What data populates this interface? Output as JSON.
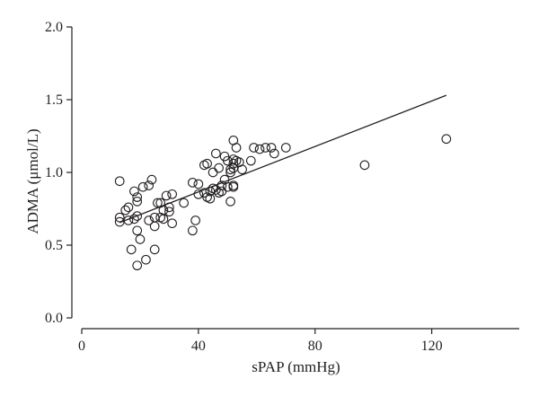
{
  "chart_data": {
    "type": "scatter",
    "title": "",
    "xlabel": "sPAP (mmHg)",
    "ylabel": "ADMA (μmol/L)",
    "xlim": [
      0,
      150
    ],
    "ylim": [
      0,
      2.0
    ],
    "x_ticks": [
      "0",
      "40",
      "80",
      "120"
    ],
    "x_tick_values": [
      0,
      40,
      80,
      120
    ],
    "y_ticks": [
      "0.0",
      "0.5",
      "1.0",
      "1.5",
      "2.0"
    ],
    "y_tick_values": [
      0.0,
      0.5,
      1.0,
      1.5,
      2.0
    ],
    "grid": false,
    "marker": "open-circle",
    "colors": {
      "ink": "#231f20"
    },
    "points": [
      {
        "x": 13,
        "y": 0.94
      },
      {
        "x": 13,
        "y": 0.69
      },
      {
        "x": 13,
        "y": 0.66
      },
      {
        "x": 15,
        "y": 0.74
      },
      {
        "x": 16,
        "y": 0.76
      },
      {
        "x": 16,
        "y": 0.67
      },
      {
        "x": 17,
        "y": 0.47
      },
      {
        "x": 18,
        "y": 0.87
      },
      {
        "x": 18,
        "y": 0.68
      },
      {
        "x": 19,
        "y": 0.83
      },
      {
        "x": 19,
        "y": 0.8
      },
      {
        "x": 19,
        "y": 0.6
      },
      {
        "x": 19,
        "y": 0.7
      },
      {
        "x": 19,
        "y": 0.36
      },
      {
        "x": 20,
        "y": 0.54
      },
      {
        "x": 21,
        "y": 0.9
      },
      {
        "x": 22,
        "y": 0.4
      },
      {
        "x": 23,
        "y": 0.91
      },
      {
        "x": 23,
        "y": 0.67
      },
      {
        "x": 24,
        "y": 0.95
      },
      {
        "x": 25,
        "y": 0.69
      },
      {
        "x": 25,
        "y": 0.63
      },
      {
        "x": 25,
        "y": 0.47
      },
      {
        "x": 26,
        "y": 0.79
      },
      {
        "x": 27,
        "y": 0.79
      },
      {
        "x": 27,
        "y": 0.69
      },
      {
        "x": 28,
        "y": 0.68
      },
      {
        "x": 28,
        "y": 0.74
      },
      {
        "x": 29,
        "y": 0.84
      },
      {
        "x": 30,
        "y": 0.76
      },
      {
        "x": 30,
        "y": 0.73
      },
      {
        "x": 31,
        "y": 0.85
      },
      {
        "x": 31,
        "y": 0.65
      },
      {
        "x": 35,
        "y": 0.79
      },
      {
        "x": 38,
        "y": 0.93
      },
      {
        "x": 38,
        "y": 0.6
      },
      {
        "x": 39,
        "y": 0.67
      },
      {
        "x": 40,
        "y": 0.92
      },
      {
        "x": 40,
        "y": 0.85
      },
      {
        "x": 42,
        "y": 1.05
      },
      {
        "x": 42,
        "y": 0.86
      },
      {
        "x": 43,
        "y": 1.06
      },
      {
        "x": 43,
        "y": 0.83
      },
      {
        "x": 44,
        "y": 0.82
      },
      {
        "x": 44,
        "y": 0.87
      },
      {
        "x": 45,
        "y": 1.0
      },
      {
        "x": 45,
        "y": 0.89
      },
      {
        "x": 46,
        "y": 1.13
      },
      {
        "x": 46,
        "y": 0.88
      },
      {
        "x": 47,
        "y": 1.03
      },
      {
        "x": 47,
        "y": 0.86
      },
      {
        "x": 48,
        "y": 0.91
      },
      {
        "x": 48,
        "y": 0.87
      },
      {
        "x": 49,
        "y": 1.11
      },
      {
        "x": 49,
        "y": 0.95
      },
      {
        "x": 50,
        "y": 1.08
      },
      {
        "x": 50,
        "y": 0.9
      },
      {
        "x": 51,
        "y": 1.02
      },
      {
        "x": 51,
        "y": 0.8
      },
      {
        "x": 51,
        "y": 1.0
      },
      {
        "x": 52,
        "y": 1.22
      },
      {
        "x": 52,
        "y": 1.09
      },
      {
        "x": 52,
        "y": 1.06
      },
      {
        "x": 52,
        "y": 1.03
      },
      {
        "x": 52,
        "y": 0.91
      },
      {
        "x": 52,
        "y": 0.9
      },
      {
        "x": 53,
        "y": 1.17
      },
      {
        "x": 53,
        "y": 1.08
      },
      {
        "x": 54,
        "y": 1.07
      },
      {
        "x": 55,
        "y": 1.02
      },
      {
        "x": 58,
        "y": 1.08
      },
      {
        "x": 59,
        "y": 1.17
      },
      {
        "x": 61,
        "y": 1.16
      },
      {
        "x": 63,
        "y": 1.17
      },
      {
        "x": 65,
        "y": 1.17
      },
      {
        "x": 66,
        "y": 1.13
      },
      {
        "x": 70,
        "y": 1.17
      },
      {
        "x": 97,
        "y": 1.05
      },
      {
        "x": 125,
        "y": 1.23
      }
    ],
    "regression_line": {
      "x": [
        13,
        125
      ],
      "y": [
        0.655,
        1.53
      ]
    }
  }
}
